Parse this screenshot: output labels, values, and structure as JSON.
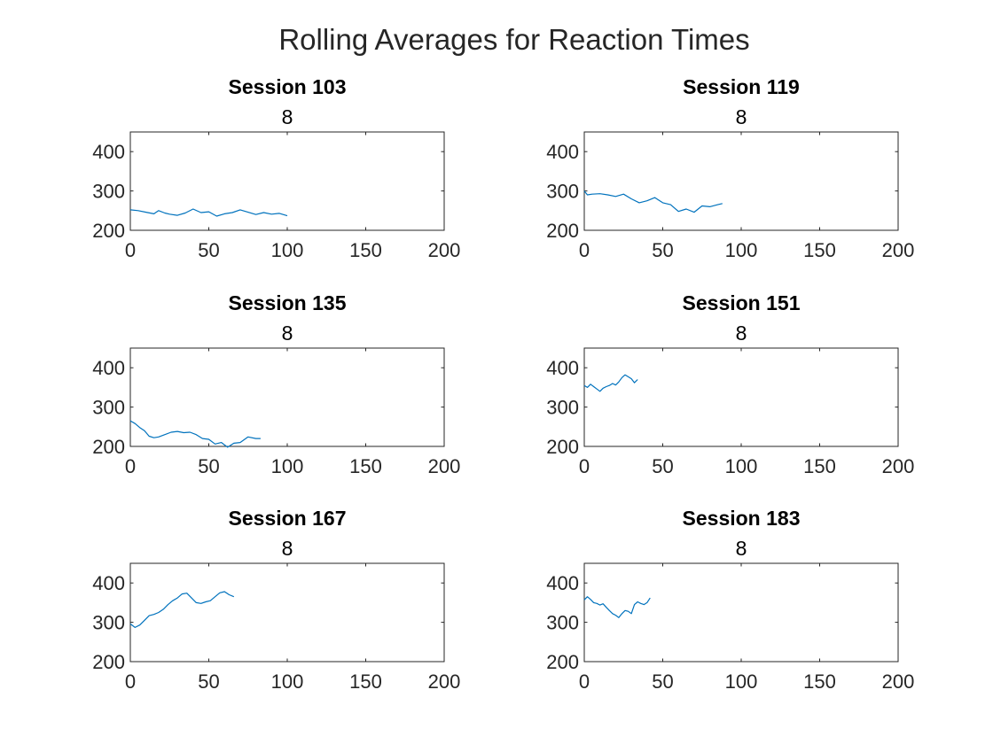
{
  "figure": {
    "title": "Rolling Averages for Reaction Times",
    "line_color": "#0072BD"
  },
  "chart_data": [
    {
      "type": "line",
      "title": "Session 103",
      "subtitle": "8",
      "xlim": [
        0,
        200
      ],
      "ylim": [
        200,
        450
      ],
      "xticks": [
        0,
        50,
        100,
        150,
        200
      ],
      "yticks": [
        200,
        300,
        400
      ],
      "grid": false,
      "series": [
        {
          "x": [
            0,
            5,
            10,
            15,
            18,
            22,
            25,
            30,
            35,
            40,
            45,
            50,
            55,
            60,
            65,
            70,
            75,
            80,
            85,
            90,
            95,
            100
          ],
          "values": [
            252,
            250,
            246,
            242,
            250,
            244,
            241,
            238,
            244,
            254,
            245,
            247,
            236,
            242,
            245,
            252,
            246,
            240,
            245,
            241,
            243,
            237
          ]
        }
      ]
    },
    {
      "type": "line",
      "title": "Session 119",
      "subtitle": "8",
      "xlim": [
        0,
        200
      ],
      "ylim": [
        200,
        450
      ],
      "xticks": [
        0,
        50,
        100,
        150,
        200
      ],
      "yticks": [
        200,
        300,
        400
      ],
      "grid": false,
      "series": [
        {
          "x": [
            0,
            2,
            5,
            10,
            15,
            20,
            25,
            30,
            35,
            40,
            45,
            50,
            55,
            60,
            65,
            70,
            75,
            80,
            85,
            88
          ],
          "values": [
            300,
            290,
            292,
            293,
            290,
            286,
            292,
            280,
            270,
            275,
            283,
            270,
            265,
            248,
            254,
            246,
            262,
            260,
            265,
            268
          ]
        }
      ]
    },
    {
      "type": "line",
      "title": "Session 135",
      "subtitle": "8",
      "xlim": [
        0,
        200
      ],
      "ylim": [
        200,
        450
      ],
      "xticks": [
        0,
        50,
        100,
        150,
        200
      ],
      "yticks": [
        200,
        300,
        400
      ],
      "grid": false,
      "series": [
        {
          "x": [
            0,
            3,
            6,
            9,
            12,
            15,
            18,
            22,
            26,
            30,
            34,
            38,
            42,
            46,
            50,
            54,
            58,
            62,
            66,
            70,
            75,
            80,
            83
          ],
          "values": [
            265,
            258,
            248,
            240,
            226,
            222,
            224,
            230,
            236,
            238,
            235,
            236,
            230,
            220,
            218,
            206,
            210,
            198,
            208,
            210,
            224,
            220,
            220
          ]
        }
      ]
    },
    {
      "type": "line",
      "title": "Session 151",
      "subtitle": "8",
      "xlim": [
        0,
        200
      ],
      "ylim": [
        200,
        450
      ],
      "xticks": [
        0,
        50,
        100,
        150,
        200
      ],
      "yticks": [
        200,
        300,
        400
      ],
      "grid": false,
      "series": [
        {
          "x": [
            0,
            2,
            4,
            6,
            8,
            10,
            12,
            14,
            16,
            18,
            20,
            22,
            24,
            26,
            28,
            30,
            32,
            34
          ],
          "values": [
            355,
            350,
            358,
            352,
            346,
            340,
            348,
            352,
            355,
            360,
            356,
            364,
            375,
            382,
            377,
            372,
            362,
            370
          ]
        }
      ]
    },
    {
      "type": "line",
      "title": "Session 167",
      "subtitle": "8",
      "xlim": [
        0,
        200
      ],
      "ylim": [
        200,
        450
      ],
      "xticks": [
        0,
        50,
        100,
        150,
        200
      ],
      "yticks": [
        200,
        300,
        400
      ],
      "grid": false,
      "series": [
        {
          "x": [
            0,
            3,
            6,
            9,
            12,
            15,
            18,
            21,
            24,
            27,
            30,
            33,
            36,
            39,
            42,
            45,
            48,
            51,
            54,
            57,
            60,
            63,
            66
          ],
          "values": [
            296,
            287,
            293,
            305,
            317,
            320,
            325,
            333,
            345,
            355,
            362,
            372,
            374,
            362,
            350,
            348,
            352,
            355,
            365,
            375,
            378,
            370,
            365
          ]
        }
      ]
    },
    {
      "type": "line",
      "title": "Session 183",
      "subtitle": "8",
      "xlim": [
        0,
        200
      ],
      "ylim": [
        200,
        450
      ],
      "xticks": [
        0,
        50,
        100,
        150,
        200
      ],
      "yticks": [
        200,
        300,
        400
      ],
      "grid": false,
      "series": [
        {
          "x": [
            0,
            2,
            4,
            6,
            8,
            10,
            12,
            14,
            16,
            18,
            20,
            22,
            24,
            26,
            28,
            30,
            32,
            34,
            36,
            38,
            40,
            42
          ],
          "values": [
            357,
            365,
            358,
            350,
            348,
            344,
            347,
            338,
            330,
            322,
            318,
            312,
            322,
            330,
            328,
            322,
            345,
            352,
            348,
            345,
            350,
            362
          ]
        }
      ]
    }
  ]
}
